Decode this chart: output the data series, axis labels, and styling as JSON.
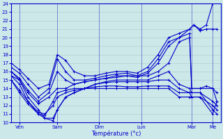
{
  "xlabel": "Température (°c)",
  "xlim": [
    0,
    100
  ],
  "ylim": [
    10,
    24
  ],
  "yticks": [
    10,
    11,
    12,
    13,
    14,
    15,
    16,
    17,
    18,
    19,
    20,
    21,
    22,
    23,
    24
  ],
  "day_labels": [
    "Ven",
    "Sam",
    "Dim",
    "Lun",
    "Mar",
    "Me"
  ],
  "day_positions": [
    4,
    22,
    42,
    62,
    86,
    96
  ],
  "background_color": "#cce8e8",
  "grid_color": "#aacccc",
  "line_color": "#0000cc",
  "line_width": 0.8,
  "marker": "+",
  "marker_size": 3,
  "series": [
    {
      "x": [
        0,
        4,
        8,
        13,
        18,
        22,
        26,
        30,
        35,
        40,
        45,
        50,
        55,
        60,
        65,
        70,
        75,
        80,
        85,
        87,
        90,
        93,
        96,
        98
      ],
      "y": [
        17.0,
        16.2,
        15.2,
        14.0,
        14.5,
        18.0,
        17.3,
        16.0,
        15.5,
        15.5,
        15.8,
        16.0,
        16.0,
        15.8,
        16.5,
        18.0,
        20.0,
        20.5,
        21.0,
        21.5,
        21.0,
        21.5,
        24.0,
        24.3
      ]
    },
    {
      "x": [
        0,
        4,
        8,
        13,
        18,
        22,
        26,
        30,
        35,
        40,
        45,
        50,
        55,
        60,
        65,
        70,
        75,
        80,
        85,
        87,
        90,
        93,
        96,
        98
      ],
      "y": [
        16.5,
        15.8,
        14.5,
        13.0,
        14.0,
        17.5,
        16.0,
        15.0,
        15.0,
        15.2,
        15.5,
        15.7,
        15.8,
        15.5,
        16.0,
        17.5,
        19.5,
        20.0,
        21.0,
        21.5,
        20.8,
        21.0,
        21.0,
        21.0
      ]
    },
    {
      "x": [
        0,
        4,
        8,
        13,
        18,
        22,
        26,
        30,
        35,
        40,
        45,
        50,
        55,
        60,
        65,
        70,
        75,
        80,
        85,
        86,
        90,
        93,
        96,
        98
      ],
      "y": [
        16.0,
        15.2,
        13.8,
        12.5,
        13.5,
        16.0,
        15.0,
        14.5,
        14.8,
        15.0,
        15.2,
        15.5,
        15.5,
        15.3,
        15.8,
        17.0,
        19.0,
        20.0,
        20.5,
        14.0,
        14.0,
        14.3,
        14.0,
        13.5
      ]
    },
    {
      "x": [
        0,
        4,
        8,
        13,
        18,
        22,
        26,
        30,
        35,
        40,
        45,
        50,
        55,
        60,
        65,
        70,
        75,
        80,
        85,
        86,
        90,
        96,
        98
      ],
      "y": [
        15.5,
        15.0,
        13.5,
        12.2,
        13.0,
        14.0,
        14.0,
        14.5,
        14.8,
        15.0,
        15.2,
        15.3,
        15.5,
        15.5,
        15.5,
        16.0,
        17.0,
        19.5,
        20.0,
        14.0,
        14.0,
        14.0,
        12.5
      ]
    },
    {
      "x": [
        0,
        4,
        8,
        13,
        16,
        20,
        22,
        26,
        30,
        35,
        40,
        45,
        50,
        55,
        60,
        65,
        70,
        75,
        80,
        85,
        86,
        90,
        96,
        98
      ],
      "y": [
        16.0,
        15.0,
        13.0,
        11.5,
        10.5,
        10.2,
        11.5,
        13.0,
        13.5,
        14.0,
        14.5,
        14.8,
        15.0,
        15.0,
        15.0,
        15.0,
        15.5,
        16.0,
        14.5,
        14.0,
        13.5,
        13.5,
        12.5,
        12.0
      ]
    },
    {
      "x": [
        0,
        4,
        8,
        13,
        16,
        20,
        22,
        26,
        30,
        35,
        40,
        45,
        50,
        55,
        60,
        65,
        70,
        75,
        80,
        85,
        86,
        90,
        96,
        98
      ],
      "y": [
        15.5,
        14.5,
        12.5,
        11.0,
        10.5,
        10.5,
        11.5,
        13.0,
        13.5,
        14.0,
        14.5,
        14.7,
        14.8,
        14.8,
        14.8,
        14.8,
        15.0,
        15.0,
        14.0,
        13.5,
        13.0,
        13.0,
        12.0,
        11.5
      ]
    },
    {
      "x": [
        0,
        4,
        8,
        13,
        16,
        20,
        22,
        26,
        30,
        35,
        40,
        45,
        50,
        55,
        60,
        65,
        70,
        75,
        80,
        85,
        90,
        96,
        98
      ],
      "y": [
        15.0,
        13.8,
        12.5,
        11.2,
        11.0,
        12.0,
        13.0,
        13.5,
        13.8,
        14.0,
        14.2,
        14.3,
        14.3,
        14.2,
        14.2,
        14.3,
        14.3,
        14.3,
        13.5,
        13.5,
        13.5,
        11.5,
        11.0
      ]
    },
    {
      "x": [
        0,
        4,
        8,
        13,
        16,
        20,
        22,
        26,
        30,
        35,
        40,
        45,
        50,
        55,
        60,
        65,
        70,
        75,
        80,
        85,
        90,
        96,
        98
      ],
      "y": [
        15.0,
        13.5,
        12.2,
        11.0,
        10.8,
        12.5,
        13.5,
        13.8,
        14.0,
        14.0,
        14.0,
        14.0,
        14.0,
        14.0,
        14.0,
        14.0,
        14.0,
        14.0,
        13.0,
        13.0,
        13.0,
        11.0,
        12.5
      ]
    }
  ]
}
